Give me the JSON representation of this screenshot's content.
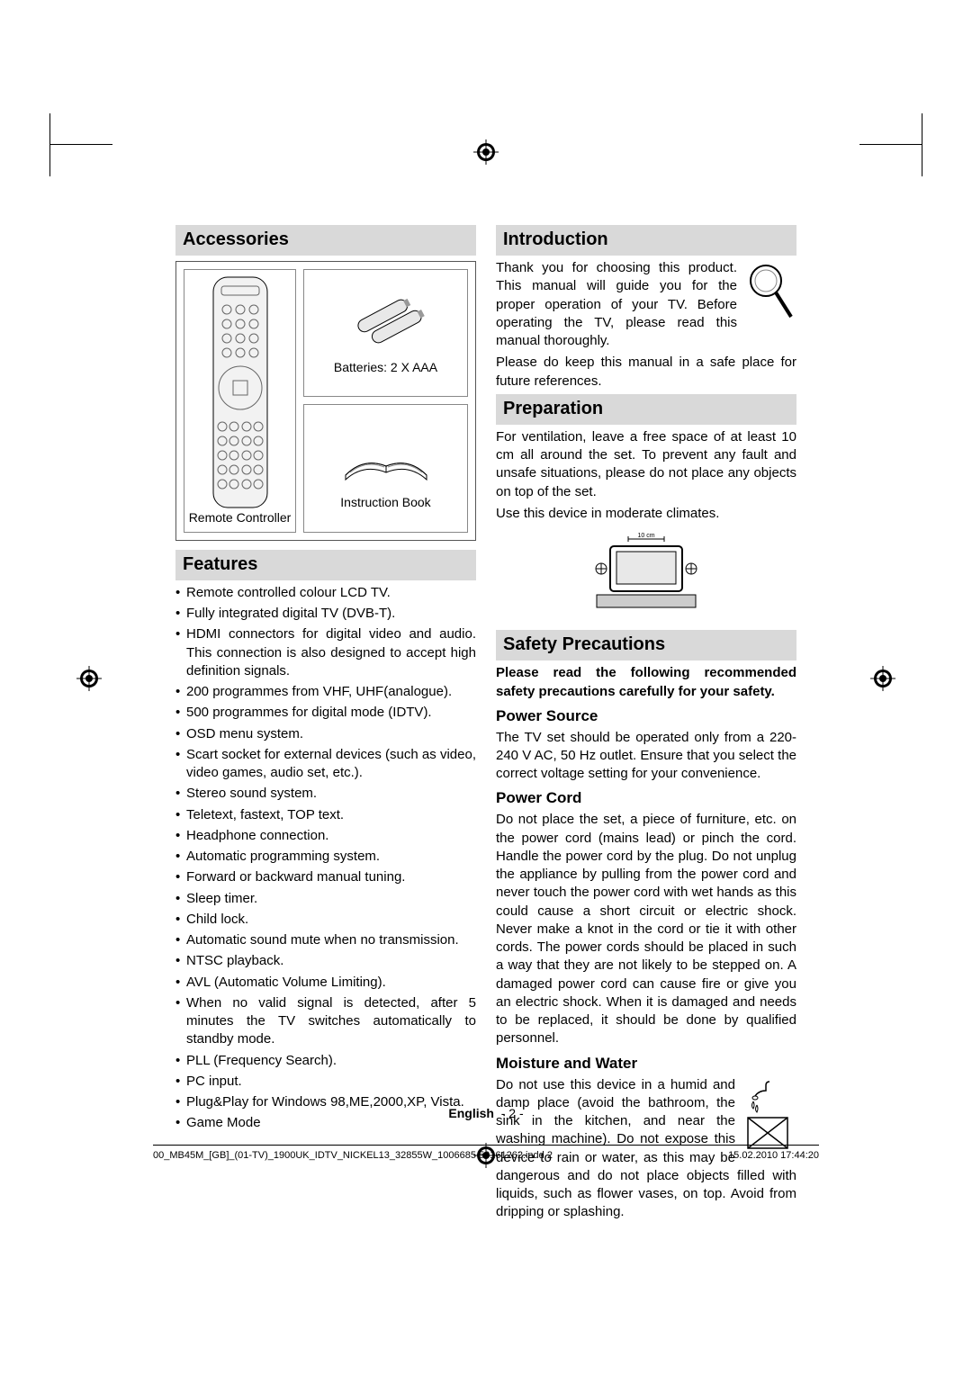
{
  "colors": {
    "heading_bg": "#d9d9d9",
    "text": "#000000",
    "border": "#555555"
  },
  "typography": {
    "body_pt": 11,
    "heading_pt": 15,
    "subhead_pt": 13
  },
  "left": {
    "accessories": {
      "title": "Accessories",
      "remote_label": "Remote Controller",
      "batteries_label": "Batteries: 2 X AAA",
      "book_label": "Instruction Book"
    },
    "features": {
      "title": "Features",
      "items": [
        "Remote controlled colour LCD TV.",
        "Fully integrated digital TV (DVB-T).",
        "HDMI connectors for digital video and audio. This connection is also designed to accept high definition signals.",
        "200 programmes from VHF, UHF(analogue).",
        "500 programmes for digital mode (IDTV).",
        "OSD menu system.",
        "Scart socket for external devices (such as video, video games, audio set, etc.).",
        "Stereo sound system.",
        "Teletext, fastext, TOP text.",
        "Headphone connection.",
        "Automatic programming system.",
        "Forward or backward manual tuning.",
        "Sleep timer.",
        "Child lock.",
        "Automatic sound mute when no transmission.",
        "NTSC playback.",
        "AVL (Automatic Volume Limiting).",
        "When no valid signal is detected, after 5 minutes the TV switches automatically to standby mode.",
        "PLL (Frequency Search).",
        "PC input.",
        "Plug&Play for Windows 98,ME,2000,XP, Vista.",
        "Game Mode"
      ]
    }
  },
  "right": {
    "introduction": {
      "title": "Introduction",
      "p1": "Thank you for choosing this product. This manual will guide  you for the proper operation of your TV. Before operating the TV, please read this manual thoroughly.",
      "p2": "Please do keep this manual in a safe place for future references."
    },
    "preparation": {
      "title": "Preparation",
      "p1": "For ventilation, leave a free space of at least 10 cm all around the set. To prevent any fault and unsafe situations, please do not place any objects on top of the set.",
      "p2": "Use this device in moderate climates.",
      "diagram_label": "10 cm"
    },
    "safety": {
      "title": "Safety Precautions",
      "lead": "Please read the following recommended safety precautions carefully for your safety.",
      "power_source": {
        "title": "Power Source",
        "body": "The TV set should be operated only from a 220-240 V AC, 50 Hz outlet. Ensure that you select the correct voltage setting for your convenience."
      },
      "power_cord": {
        "title": "Power Cord",
        "body": "Do not place the set, a piece of furniture, etc. on the power cord (mains lead) or pinch the cord. Handle the power cord by the plug. Do not unplug the appliance by pulling from the power cord and never touch the power cord with wet hands as this could cause a short circuit or electric shock. Never make a knot in the cord or tie it with other cords. The power cords should be placed in such a way that they are not likely to be stepped on. A damaged power cord can cause fire or give you an electric shock. When it is damaged and needs to be replaced, it should be done by qualified personnel."
      },
      "moisture": {
        "title": "Moisture and Water",
        "body": "Do not use this device in a humid and damp place (avoid the bathroom, the sink in the kitchen, and near the washing machine). Do not expose this device to rain or water, as this may be dangerous and do not place objects filled with liquids, such as flower vases, on top. Avoid from dripping or splashing."
      }
    }
  },
  "footer": {
    "lang": "English",
    "page": "- 2 -"
  },
  "meta": {
    "file": "00_MB45M_[GB]_(01-TV)_1900UK_IDTV_NICKEL13_32855W_1006685     50161262.indd   2",
    "timestamp": "15.02.2010   17:44:20"
  }
}
